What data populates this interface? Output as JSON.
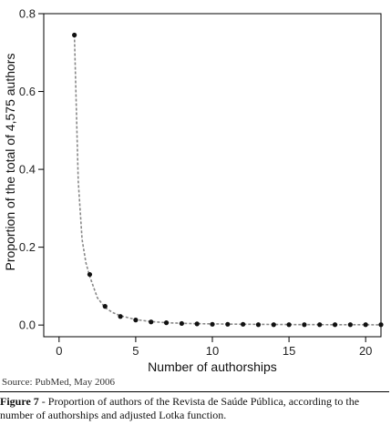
{
  "chart_data": {
    "type": "line",
    "marker_style": "scatter",
    "xlabel": "Number of authorships",
    "ylabel": "Proportion of the total of 4,575 authors",
    "xlim": [
      -1,
      21
    ],
    "ylim": [
      -0.03,
      0.8
    ],
    "xticks": [
      0,
      5,
      10,
      15,
      20
    ],
    "xtick_labels": [
      "0",
      "5",
      "10",
      "15",
      "20"
    ],
    "yticks": [
      0.0,
      0.2,
      0.4,
      0.6,
      0.8
    ],
    "ytick_labels": [
      "0.0",
      "0.2",
      "0.4",
      "0.6",
      "0.8"
    ],
    "grid": false,
    "series": [
      {
        "role": "observed",
        "x": [
          1,
          2,
          3,
          4,
          5,
          6,
          7,
          8,
          9,
          10,
          11,
          12,
          13,
          14,
          15,
          16,
          17,
          18,
          19,
          20,
          21
        ],
        "y": [
          0.745,
          0.13,
          0.048,
          0.022,
          0.013,
          0.008,
          0.006,
          0.004,
          0.003,
          0.002,
          0.002,
          0.002,
          0.001,
          0.001,
          0.001,
          0.001,
          0.001,
          0.001,
          0.001,
          0.001,
          0.001
        ]
      },
      {
        "role": "lotka-fit",
        "x": [
          1,
          1.25,
          1.5,
          1.75,
          2,
          2.5,
          3,
          3.5,
          4,
          5,
          6,
          7,
          8,
          9,
          10,
          11,
          12,
          13,
          14,
          15,
          16,
          17,
          18,
          19,
          20,
          21
        ],
        "y": [
          0.745,
          0.37,
          0.22,
          0.16,
          0.125,
          0.07,
          0.045,
          0.032,
          0.024,
          0.014,
          0.009,
          0.006,
          0.0045,
          0.0035,
          0.003,
          0.0025,
          0.002,
          0.0018,
          0.0015,
          0.0013,
          0.0011,
          0.001,
          0.0009,
          0.0008,
          0.0007,
          0.0006
        ]
      }
    ],
    "colors": {
      "marker": "#111111",
      "fit_line": "#888888",
      "axis": "#000000"
    }
  },
  "source": "Source: PubMed, May 2006",
  "caption": {
    "label": "Figure 7",
    "text": " - Proportion of authors of the Revista de Saúde Pública, according to the number of authorships and adjusted Lotka function."
  }
}
